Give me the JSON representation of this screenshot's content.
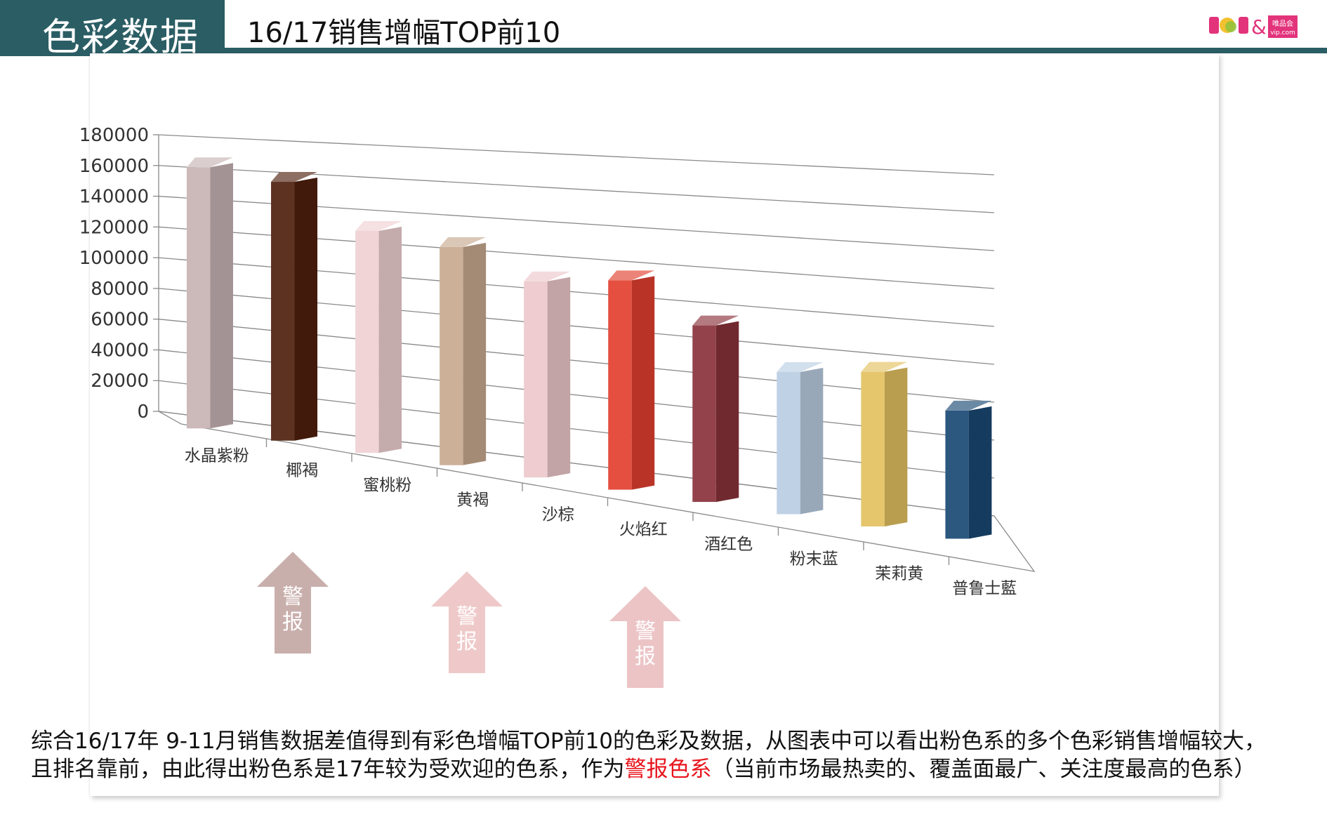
{
  "header": {
    "section_title": "色彩数据",
    "subtitle": "16/17销售增幅TOP前10",
    "logo": {
      "text": "POP&",
      "sub_line1": "唯品会",
      "sub_line2": "vip.com",
      "colors": [
        "#e2337b",
        "#f2c130",
        "#8fc33c",
        "#e2337b"
      ]
    }
  },
  "chart_data": {
    "type": "bar",
    "title": "16/17销售增幅TOP前10",
    "categories": [
      "水晶紫粉",
      "椰褐",
      "蜜桃粉",
      "黄褐",
      "沙棕",
      "火焰红",
      "酒红色",
      "粉末蓝",
      "茉莉黄",
      "普鲁士藍"
    ],
    "values": [
      160000,
      155000,
      130000,
      125000,
      110000,
      115000,
      95000,
      75000,
      80000,
      65000
    ],
    "colors": [
      "#c8b3b4",
      "#4f200e",
      "#efd0d2",
      "#c8a98f",
      "#edc8cb",
      "#e2402f",
      "#8a323b",
      "#b9cde2",
      "#e3c160",
      "#1a4974"
    ],
    "y_ticks": [
      "0",
      "20000",
      "40000",
      "60000",
      "80000",
      "100000",
      "120000",
      "140000",
      "160000",
      "180000"
    ],
    "ylim": [
      0,
      180000
    ],
    "grid": true,
    "xlabel": "",
    "ylabel": "",
    "annotations": [
      {
        "category": "水晶紫粉",
        "label": "警报",
        "color": "#c9afac"
      },
      {
        "category": "蜜桃粉",
        "label": "警报",
        "color": "#efc9c9"
      },
      {
        "category": "沙棕",
        "label": "警报",
        "color": "#ecc4c6"
      }
    ]
  },
  "summary": {
    "part1": "综合16/17年 9-11月销售数据差值得到有彩色增幅TOP前10的色彩及数据，从图表中可以看出粉色系的多个色彩销售增幅较大，且排名靠前，由此得出粉色系是17年较为受欢迎的色系，作为",
    "highlight": "警报色系",
    "part2": "（当前市场最热卖的、覆盖面最广、关注度最高的色系）",
    "highlight_color": "#e8141c"
  }
}
